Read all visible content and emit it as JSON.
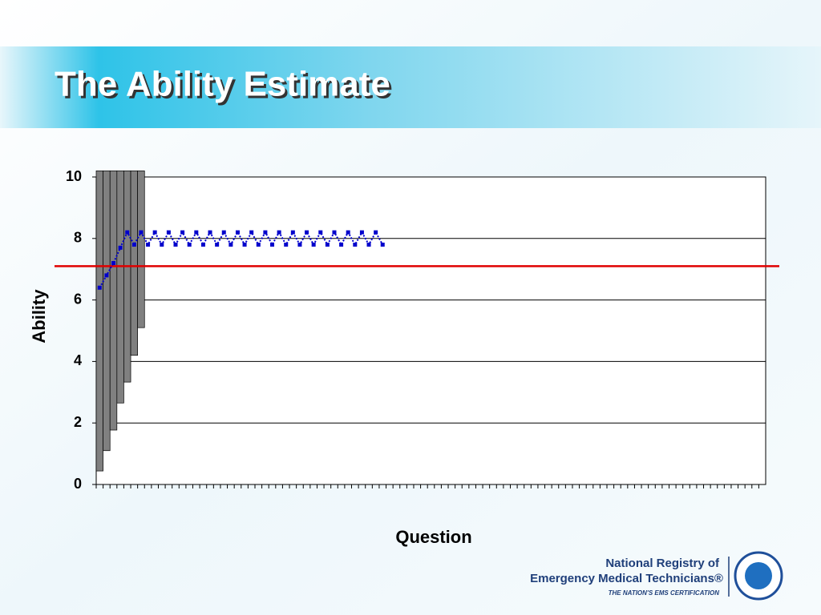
{
  "chart_data": {
    "type": "line",
    "title": "The Ability Estimate",
    "x_label": "Question",
    "y_label": "Ability",
    "categories": [
      null,
      null,
      null,
      null,
      null,
      null,
      null,
      null,
      null,
      null,
      null,
      null,
      null,
      null,
      null,
      null,
      null,
      null,
      null,
      null,
      null,
      null,
      null,
      null,
      null,
      null,
      null,
      null,
      null,
      null,
      null,
      null,
      null,
      null,
      null,
      null,
      null,
      null,
      null,
      null,
      null,
      null,
      null,
      null,
      null,
      null,
      null,
      null,
      null,
      null,
      null,
      null,
      null,
      null,
      null,
      null,
      null,
      null,
      null,
      null,
      null,
      null,
      null,
      null,
      null,
      null,
      null,
      null,
      null,
      null,
      null,
      null,
      null,
      null,
      null,
      null,
      null,
      null,
      null,
      null,
      null,
      null,
      null,
      null,
      null,
      null,
      null,
      null,
      null,
      null,
      null,
      null,
      null,
      null,
      null,
      null,
      null
    ],
    "series": [
      {
        "color": "#0000cc",
        "values": [
          6.4,
          6.8,
          7.2,
          7.7,
          8.2,
          7.8,
          8.2,
          7.8,
          8.2,
          7.8,
          8.2,
          7.8,
          8.2,
          7.8,
          8.2,
          7.8,
          8.2,
          7.8,
          8.2,
          7.8,
          8.2,
          7.8,
          8.2,
          7.8,
          8.2,
          7.8,
          8.2,
          7.8,
          8.2,
          7.8,
          8.2,
          7.8,
          8.2,
          7.8,
          8.2,
          7.8,
          8.2,
          7.8,
          8.2,
          7.8,
          8.2,
          7.8,
          null,
          null,
          null,
          null,
          null,
          null,
          null,
          null,
          null,
          null,
          null,
          null,
          null,
          null,
          null,
          null,
          null,
          null,
          null,
          null,
          null,
          null,
          null,
          null,
          null,
          null,
          null,
          null,
          null,
          null,
          null,
          null,
          null,
          null,
          null,
          null,
          null,
          null,
          null,
          null,
          null,
          null,
          null,
          null,
          null,
          null,
          null,
          null,
          null,
          null,
          null,
          null,
          null,
          null,
          null
        ]
      }
    ],
    "ranges": {
      "color": "#808080",
      "low": [
        0.44,
        1.1,
        1.77,
        2.65,
        3.33,
        4.2,
        5.1,
        null,
        null,
        null,
        null,
        null,
        null,
        null,
        null,
        null,
        null,
        null,
        null,
        null,
        null,
        null,
        null,
        null,
        null,
        null,
        null,
        null,
        null,
        null,
        null,
        null,
        null,
        null,
        null,
        null,
        null,
        null,
        null,
        null,
        null,
        null,
        null,
        null,
        null,
        null,
        null,
        null,
        null,
        null,
        null,
        null,
        null,
        null,
        null,
        null,
        null,
        null,
        null,
        null,
        null,
        null,
        null,
        null,
        null,
        null,
        null,
        null,
        null,
        null,
        null,
        null,
        null,
        null,
        null,
        null,
        null,
        null,
        null,
        null,
        null,
        null,
        null,
        null,
        null,
        null,
        null,
        null,
        null,
        null,
        null,
        null,
        null,
        null,
        null,
        null,
        null
      ],
      "high": [
        10.2,
        10.2,
        10.2,
        10.2,
        10.2,
        10.2,
        10.2,
        null,
        null,
        null,
        null,
        null,
        null,
        null,
        null,
        null,
        null,
        null,
        null,
        null,
        null,
        null,
        null,
        null,
        null,
        null,
        null,
        null,
        null,
        null,
        null,
        null,
        null,
        null,
        null,
        null,
        null,
        null,
        null,
        null,
        null,
        null,
        null,
        null,
        null,
        null,
        null,
        null,
        null,
        null,
        null,
        null,
        null,
        null,
        null,
        null,
        null,
        null,
        null,
        null,
        null,
        null,
        null,
        null,
        null,
        null,
        null,
        null,
        null,
        null,
        null,
        null,
        null,
        null,
        null,
        null,
        null,
        null,
        null,
        null,
        null,
        null,
        null,
        null,
        null,
        null,
        null,
        null,
        null,
        null,
        null,
        null,
        null,
        null,
        null,
        null,
        null
      ]
    },
    "reference_line": {
      "value": 7.1,
      "color": "#e00000"
    },
    "ylim": [
      0,
      10
    ],
    "yticks": [
      0,
      2,
      4,
      6,
      8,
      10
    ],
    "grid": true
  },
  "logo": {
    "line1": "National Registry of",
    "line2": "Emergency Medical Technicians®",
    "line3": "THE NATION'S EMS CERTIFICATION"
  }
}
